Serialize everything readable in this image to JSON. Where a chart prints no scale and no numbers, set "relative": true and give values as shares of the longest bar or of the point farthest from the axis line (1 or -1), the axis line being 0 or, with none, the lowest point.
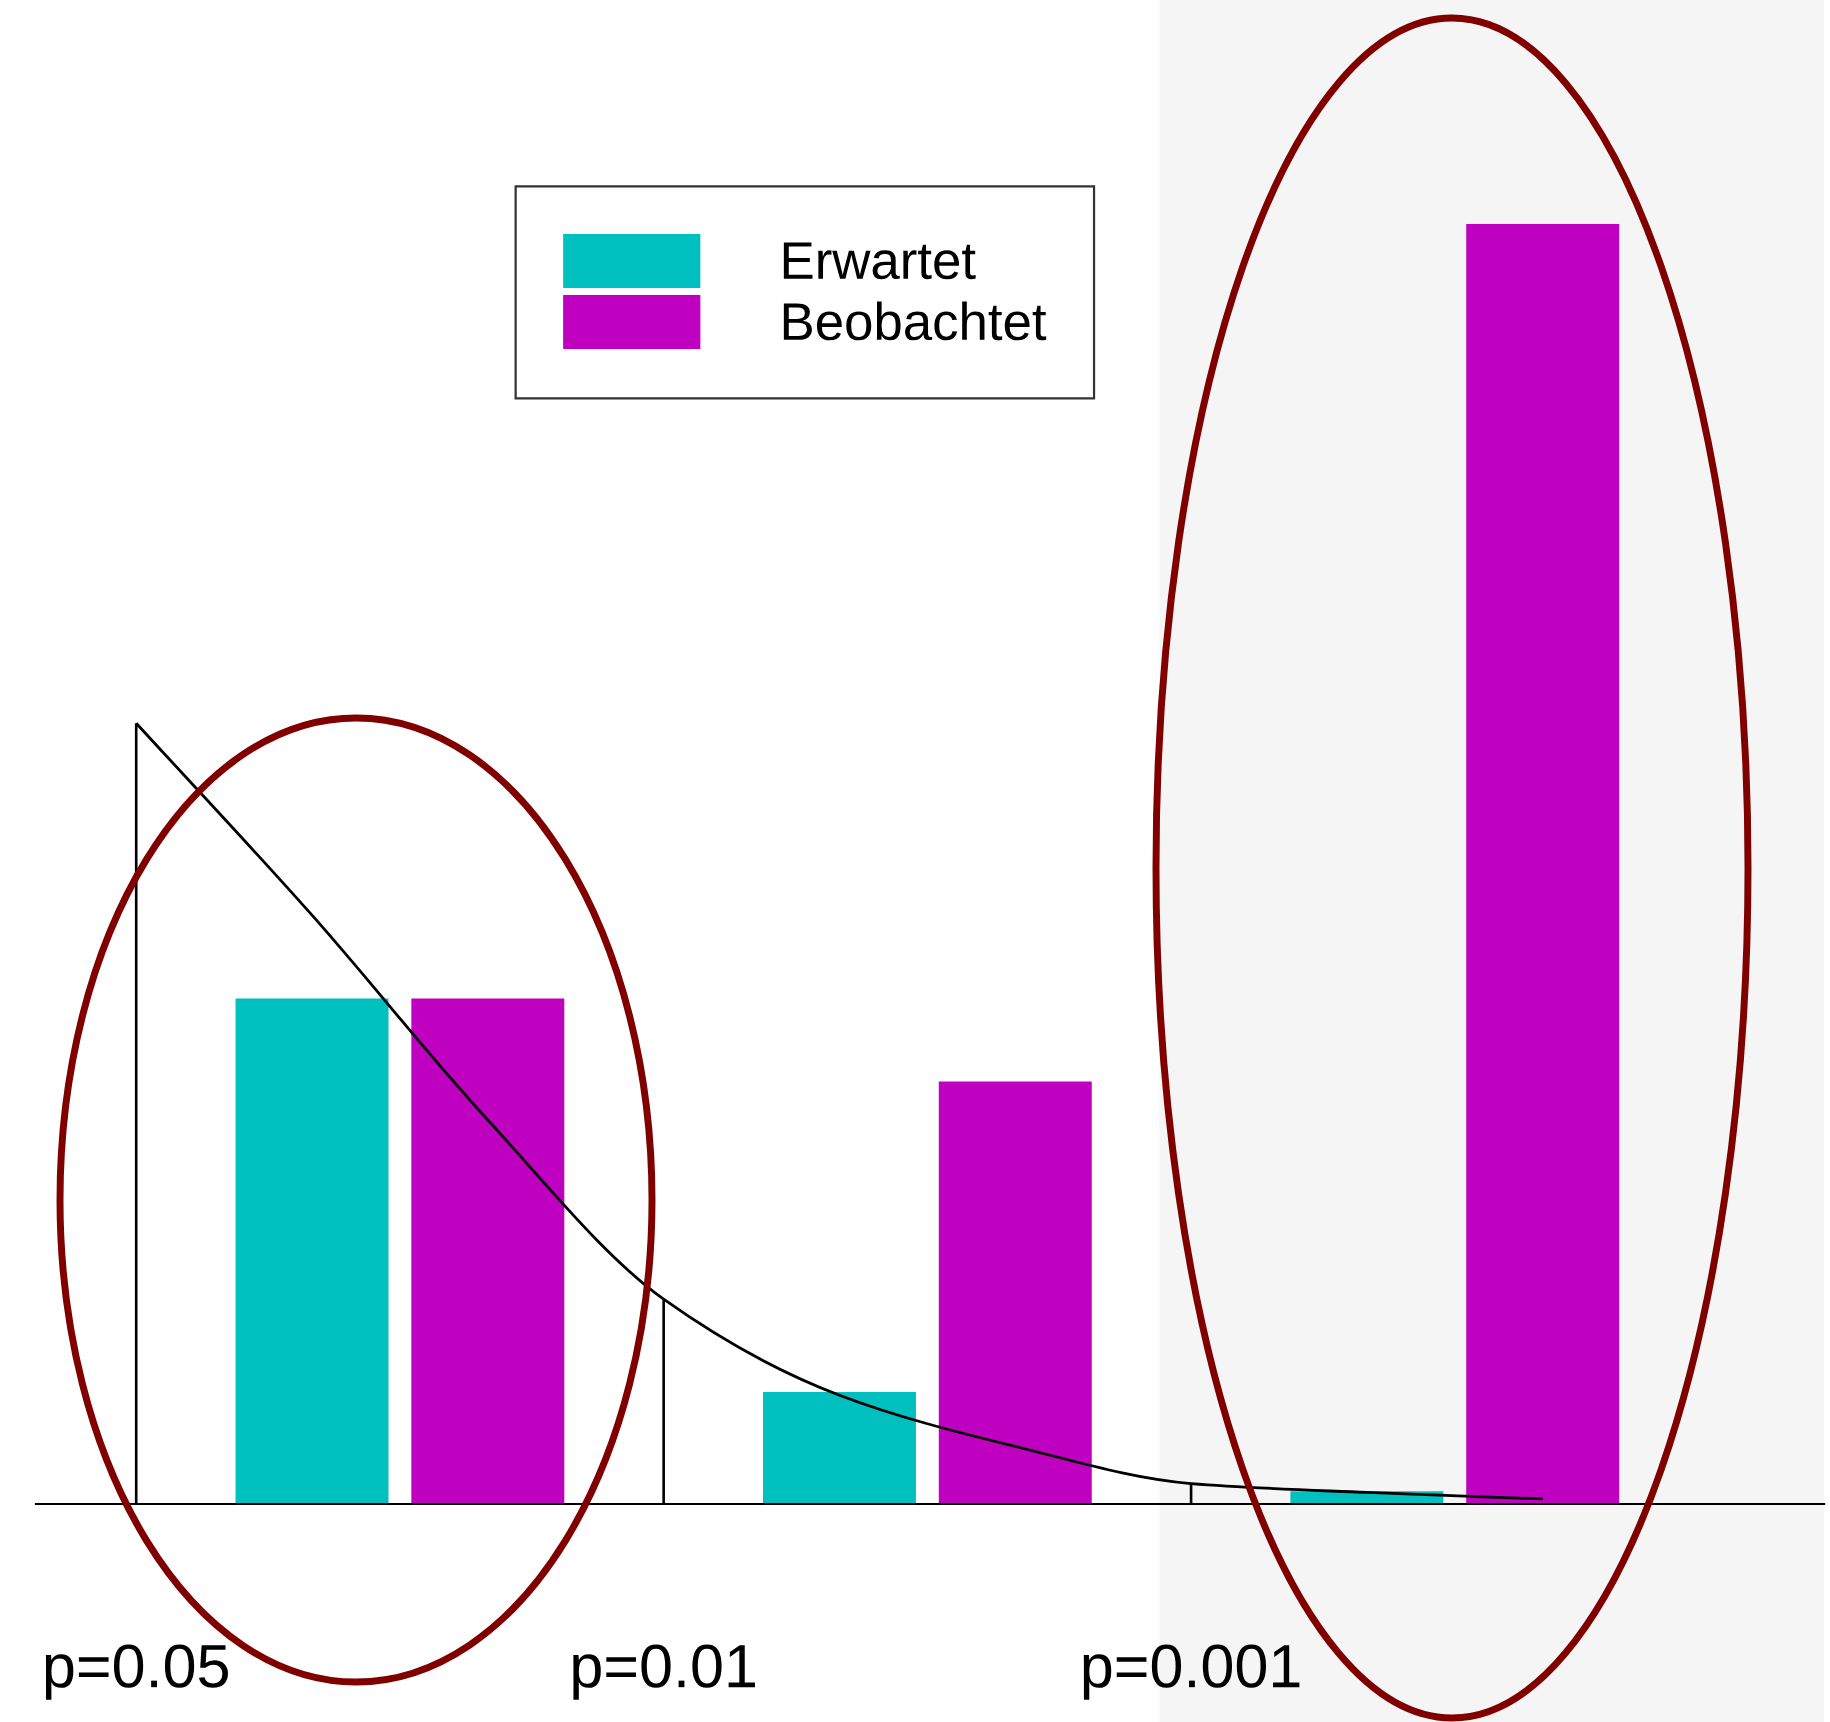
{
  "chart_data": {
    "type": "bar",
    "relative": true,
    "categories": [
      "p=0.05",
      null,
      null,
      "p=0.01",
      null,
      null,
      "p=0.001",
      null,
      null
    ],
    "series": [
      {
        "name": "Erwartet",
        "color": "#00c0c0",
        "values": [
          null,
          0.395,
          null,
          null,
          0.0875,
          null,
          null,
          0.01,
          null
        ]
      },
      {
        "name": "Beobachtet",
        "color": "#c000c0",
        "values": [
          null,
          null,
          0.395,
          null,
          null,
          0.33,
          null,
          null,
          1
        ]
      },
      {
        "color": "#000000",
        "values": [
          0.61,
          null,
          null,
          0.16,
          null,
          null,
          0.016,
          null,
          null
        ]
      },
      {
        "type": "line",
        "color": "#000000",
        "values": [
          0.61,
          0.46,
          0.3,
          0.16,
          0.085,
          0.045,
          0.016,
          0.009,
          0.004
        ]
      }
    ],
    "legend": "top"
  }
}
